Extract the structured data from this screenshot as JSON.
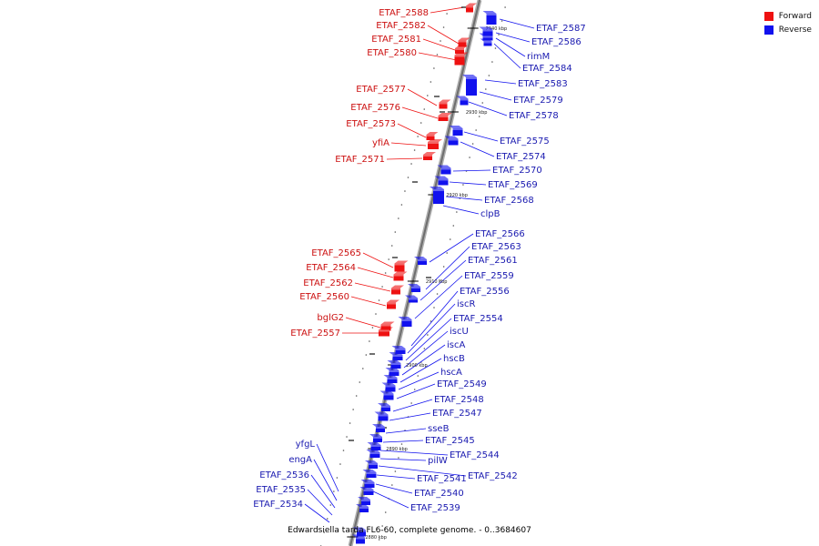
{
  "caption": "Edwardsiella tarda FL6-60, complete genome. - 0..3684607",
  "legend": [
    {
      "label": "Forward",
      "color": "#ee1111"
    },
    {
      "label": "Reverse",
      "color": "#1111ee"
    }
  ],
  "colors": {
    "forward": "#ee1111",
    "reverse": "#1111ee",
    "forward_label": "#cc1111",
    "reverse_label": "#1a1ab0",
    "backbone": "#808080"
  },
  "ticks": [
    "2890 kbp",
    "2900 kbp",
    "2910 kbp",
    "2920 kbp",
    "2930 kbp",
    "2940 kbp",
    "2880 kbp"
  ],
  "forward_genes": [
    "ETAF_2588",
    "ETAF_2582",
    "ETAF_2581",
    "ETAF_2580",
    "ETAF_2577",
    "ETAF_2576",
    "ETAF_2573",
    "yfiA",
    "ETAF_2571",
    "ETAF_2565",
    "ETAF_2564",
    "ETAF_2562",
    "ETAF_2560",
    "bglG2",
    "ETAF_2557"
  ],
  "reverse_genes_upper": [
    "ETAF_2587",
    "ETAF_2586",
    "rimM",
    "ETAF_2584",
    "ETAF_2583",
    "ETAF_2579",
    "ETAF_2578",
    "ETAF_2575",
    "ETAF_2574",
    "ETAF_2570",
    "ETAF_2569",
    "ETAF_2568",
    "clpB"
  ],
  "reverse_genes_lower": [
    "ETAF_2566",
    "ETAF_2563",
    "ETAF_2561",
    "ETAF_2559",
    "ETAF_2556",
    "iscR",
    "ETAF_2554",
    "iscU",
    "iscA",
    "hscB",
    "hscA",
    "ETAF_2549",
    "ETAF_2548",
    "ETAF_2547",
    "sseB",
    "ETAF_2545",
    "ETAF_2544",
    "pilW",
    "ETAF_2542",
    "ETAF_2541",
    "ETAF_2540",
    "ETAF_2539"
  ],
  "reverse_genes_left": [
    "yfgL",
    "engA",
    "ETAF_2536",
    "ETAF_2535",
    "ETAF_2534"
  ]
}
